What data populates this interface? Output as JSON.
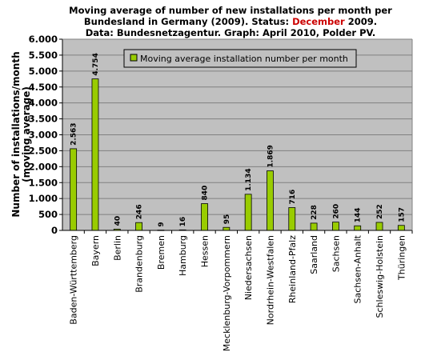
{
  "title": {
    "line1": "Moving average of number of new installations per month per",
    "line2_before": "Bundesland in Germany (2009). Status: ",
    "line2_highlight": "December",
    "line2_after": " 2009.",
    "line3": "Data: Bundesnetzagentur. Graph: April 2010, Polder PV."
  },
  "chart_data": {
    "type": "bar",
    "categories": [
      "Baden-Württemberg",
      "Bayern",
      "Berlin",
      "Brandenburg",
      "Bremen",
      "Hamburg",
      "Hessen",
      "Mecklenburg-Vorpommern",
      "Niedersachsen",
      "Nordrhein-Westfalen",
      "Rheinland-Pfalz",
      "Saarland",
      "Sachsen",
      "Sachsen-Anhalt",
      "Schleswig-Holstein",
      "Thüringen"
    ],
    "series": [
      {
        "name": "Moving average installation number per month",
        "values": [
          2563,
          4754,
          40,
          246,
          9,
          16,
          840,
          95,
          1134,
          1869,
          716,
          228,
          260,
          144,
          252,
          157
        ],
        "labels": [
          "2.563",
          "4.754",
          "40",
          "246",
          "9",
          "16",
          "840",
          "95",
          "1.134",
          "1.869",
          "716",
          "228",
          "260",
          "144",
          "252",
          "157"
        ]
      }
    ],
    "ylabel_line1": "Number of installations/month",
    "ylabel_line2": "(moving average)",
    "ylim": [
      0,
      6000
    ],
    "yticks": [
      0,
      500,
      1000,
      1500,
      2000,
      2500,
      3000,
      3500,
      4000,
      4500,
      5000,
      5500,
      6000
    ],
    "ytick_labels": [
      "0",
      "500",
      "1.000",
      "1.500",
      "2.000",
      "2.500",
      "3.000",
      "3.500",
      "4.000",
      "4.500",
      "5.000",
      "5.500",
      "6.000"
    ],
    "grid": true,
    "legend_position": "top-center",
    "colors": {
      "bar": "#99cc00",
      "plot_bg": "#c0c0c0",
      "gridline": "#808080",
      "highlight": "#cc0000"
    }
  }
}
